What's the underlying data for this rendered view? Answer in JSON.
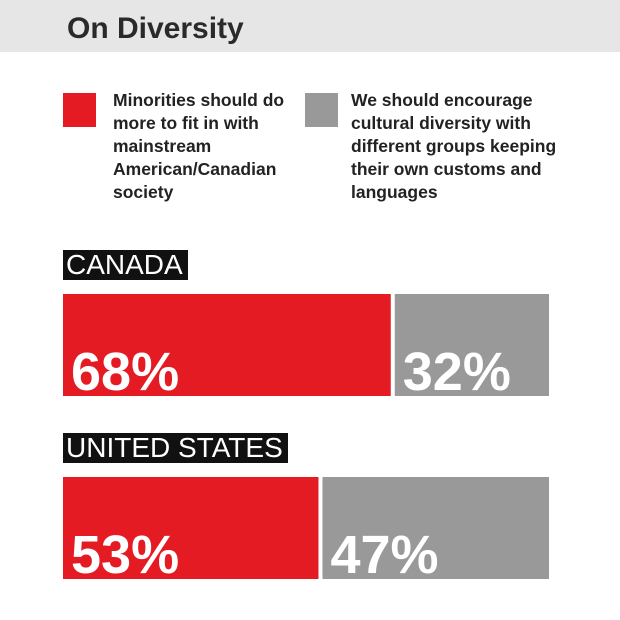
{
  "header": {
    "title": "On Diversity"
  },
  "legend": [
    {
      "label": "Minorities should do more to fit in with mainstream American/Canadian society",
      "color": "#e41b23"
    },
    {
      "label": "We should encourage cultural diversity with different groups keeping their own customs and languages",
      "color": "#999999"
    }
  ],
  "chart_data": {
    "type": "bar",
    "orientation": "horizontal-stacked",
    "categories": [
      "CANADA",
      "UNITED STATES"
    ],
    "series": [
      {
        "name": "Minorities should do more to fit in with mainstream American/Canadian society",
        "values": [
          68,
          53
        ],
        "labels": [
          "68%",
          "53%"
        ],
        "color": "#e41b23"
      },
      {
        "name": "We should encourage cultural diversity with different groups keeping their own customs and languages",
        "values": [
          32,
          47
        ],
        "labels": [
          "32%",
          "47%"
        ],
        "color": "#999999"
      }
    ],
    "xlim": [
      0,
      100
    ],
    "grid": false,
    "legend_position": "top"
  }
}
